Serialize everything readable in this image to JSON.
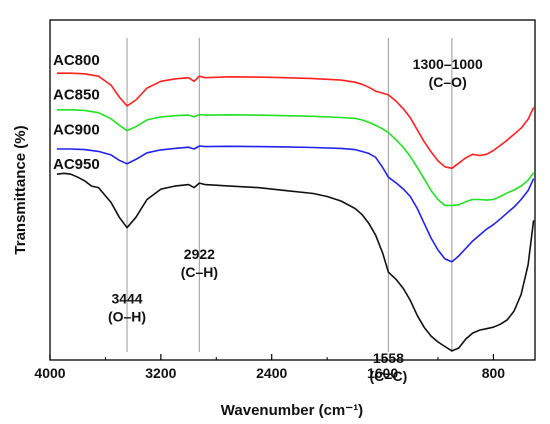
{
  "chart_data": {
    "type": "line",
    "xlabel": "Wavenumber (cm⁻¹)",
    "ylabel": "Transmittance (%)",
    "x_range": [
      4000,
      500
    ],
    "x_reversed": true,
    "xticks": [
      4000,
      3200,
      2400,
      1600,
      800
    ],
    "xtick_labels": [
      "4000",
      "3200",
      "2400",
      "1600",
      "800"
    ],
    "ylim": [
      0,
      1
    ],
    "yticks_shown": false,
    "grid": false,
    "legend": "none",
    "reference_lines": [
      3444,
      2922,
      1558,
      1100
    ],
    "annotations": [
      {
        "lines": [
          "3444",
          "(O–H)"
        ],
        "x": 3444,
        "y": 0.14
      },
      {
        "lines": [
          "2922",
          "(C–H)"
        ],
        "x": 2922,
        "y": 0.29
      },
      {
        "lines": [
          "1558",
          "(C=C)"
        ],
        "x": 1558,
        "y": -0.06
      },
      {
        "lines": [
          "1300–1000",
          "(C–O)"
        ],
        "x": 1130,
        "y": 0.93
      }
    ],
    "series": [
      {
        "name": "AC800",
        "color": "#ff2020",
        "label_y": 0.942,
        "x": [
          3950,
          3850,
          3750,
          3650,
          3560,
          3500,
          3444,
          3380,
          3300,
          3200,
          3100,
          3000,
          2960,
          2922,
          2880,
          2700,
          2500,
          2300,
          2100,
          1900,
          1800,
          1750,
          1700,
          1650,
          1600,
          1558,
          1500,
          1450,
          1400,
          1350,
          1300,
          1250,
          1200,
          1150,
          1100,
          1050,
          1000,
          950,
          900,
          850,
          800,
          750,
          700,
          650,
          600,
          550,
          510
        ],
        "values": [
          0.915,
          0.915,
          0.913,
          0.905,
          0.875,
          0.835,
          0.805,
          0.825,
          0.865,
          0.888,
          0.896,
          0.9,
          0.888,
          0.905,
          0.9,
          0.903,
          0.902,
          0.9,
          0.897,
          0.892,
          0.885,
          0.878,
          0.868,
          0.855,
          0.848,
          0.842,
          0.82,
          0.795,
          0.765,
          0.725,
          0.685,
          0.65,
          0.62,
          0.6,
          0.595,
          0.612,
          0.63,
          0.642,
          0.638,
          0.642,
          0.655,
          0.672,
          0.69,
          0.71,
          0.73,
          0.76,
          0.8
        ]
      },
      {
        "name": "AC850",
        "color": "#22e022",
        "label_y": 0.826,
        "x": [
          3950,
          3850,
          3750,
          3650,
          3560,
          3500,
          3444,
          3380,
          3300,
          3200,
          3100,
          3000,
          2960,
          2922,
          2880,
          2700,
          2500,
          2300,
          2100,
          1900,
          1800,
          1750,
          1700,
          1650,
          1600,
          1558,
          1500,
          1450,
          1400,
          1350,
          1300,
          1250,
          1200,
          1150,
          1100,
          1050,
          1000,
          950,
          900,
          850,
          800,
          750,
          700,
          650,
          600,
          550,
          510
        ],
        "values": [
          0.792,
          0.792,
          0.79,
          0.782,
          0.762,
          0.74,
          0.722,
          0.735,
          0.758,
          0.768,
          0.772,
          0.774,
          0.768,
          0.776,
          0.774,
          0.775,
          0.774,
          0.772,
          0.77,
          0.766,
          0.763,
          0.758,
          0.75,
          0.74,
          0.728,
          0.715,
          0.69,
          0.665,
          0.635,
          0.598,
          0.56,
          0.52,
          0.49,
          0.47,
          0.47,
          0.472,
          0.482,
          0.49,
          0.49,
          0.488,
          0.49,
          0.5,
          0.512,
          0.522,
          0.535,
          0.555,
          0.58
        ]
      },
      {
        "name": "AC900",
        "color": "#2222ee",
        "label_y": 0.708,
        "x": [
          3950,
          3850,
          3750,
          3650,
          3560,
          3500,
          3444,
          3380,
          3300,
          3200,
          3100,
          3000,
          2960,
          2922,
          2880,
          2700,
          2500,
          2300,
          2100,
          1900,
          1800,
          1750,
          1700,
          1650,
          1600,
          1558,
          1500,
          1450,
          1400,
          1350,
          1300,
          1250,
          1200,
          1150,
          1100,
          1050,
          1000,
          950,
          900,
          850,
          800,
          750,
          700,
          650,
          600,
          550,
          510
        ],
        "values": [
          0.66,
          0.66,
          0.658,
          0.652,
          0.64,
          0.622,
          0.61,
          0.625,
          0.647,
          0.657,
          0.662,
          0.666,
          0.66,
          0.67,
          0.668,
          0.669,
          0.668,
          0.667,
          0.665,
          0.662,
          0.658,
          0.652,
          0.645,
          0.632,
          0.598,
          0.565,
          0.545,
          0.525,
          0.5,
          0.46,
          0.41,
          0.36,
          0.32,
          0.29,
          0.28,
          0.3,
          0.325,
          0.35,
          0.37,
          0.39,
          0.405,
          0.425,
          0.445,
          0.465,
          0.49,
          0.52,
          0.56
        ]
      },
      {
        "name": "AC950",
        "color": "#111111",
        "label_y": 0.592,
        "x": [
          3950,
          3900,
          3850,
          3800,
          3750,
          3700,
          3650,
          3560,
          3500,
          3444,
          3380,
          3300,
          3200,
          3100,
          3000,
          2960,
          2922,
          2880,
          2700,
          2500,
          2300,
          2100,
          2000,
          1900,
          1800,
          1750,
          1700,
          1650,
          1600,
          1558,
          1500,
          1450,
          1400,
          1350,
          1300,
          1250,
          1200,
          1150,
          1100,
          1050,
          1000,
          950,
          900,
          850,
          800,
          750,
          700,
          650,
          600,
          550,
          510
        ],
        "values": [
          0.575,
          0.578,
          0.575,
          0.565,
          0.553,
          0.535,
          0.53,
          0.48,
          0.43,
          0.395,
          0.43,
          0.49,
          0.525,
          0.535,
          0.54,
          0.53,
          0.545,
          0.54,
          0.535,
          0.53,
          0.52,
          0.51,
          0.5,
          0.485,
          0.46,
          0.44,
          0.41,
          0.37,
          0.31,
          0.245,
          0.22,
          0.19,
          0.15,
          0.1,
          0.06,
          0.03,
          0.01,
          -0.005,
          -0.02,
          -0.01,
          0.02,
          0.04,
          0.05,
          0.055,
          0.06,
          0.07,
          0.085,
          0.115,
          0.17,
          0.27,
          0.42
        ]
      }
    ]
  }
}
